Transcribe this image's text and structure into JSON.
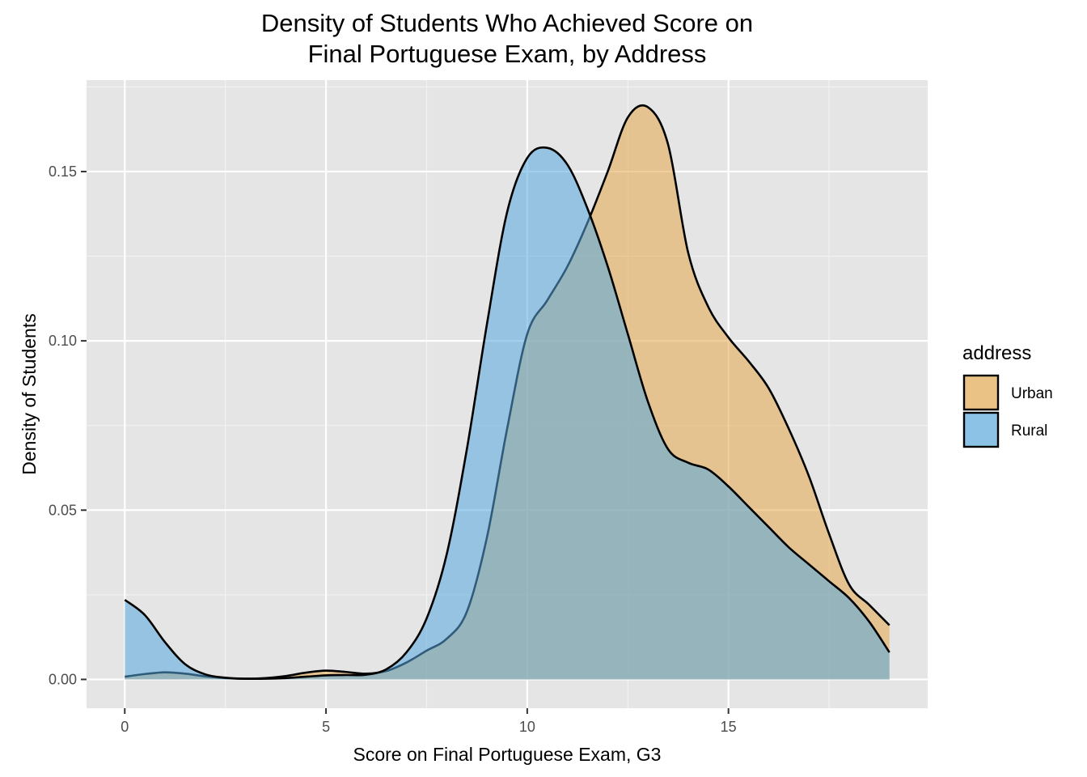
{
  "chart_data": {
    "type": "area",
    "title": [
      "Density of Students Who Achieved Score on",
      "Final Portuguese Exam, by Address"
    ],
    "xlabel": "Score on Final Portuguese Exam, G3",
    "ylabel": "Density of Students",
    "xlim": [
      -0.95,
      19.95
    ],
    "ylim": [
      -0.0085,
      0.177
    ],
    "x_ticks": [
      0,
      5,
      10,
      15
    ],
    "x_tick_labels": [
      "0",
      "5",
      "10",
      "15"
    ],
    "y_ticks": [
      0.0,
      0.05,
      0.1,
      0.15
    ],
    "y_tick_labels": [
      "0.00",
      "0.05",
      "0.10",
      "0.15"
    ],
    "grid": true,
    "panel_background": "#e5e5e5",
    "legend": {
      "title": "address",
      "position": "right"
    },
    "series": [
      {
        "name": "Urban",
        "color": "#e5a84b",
        "x": [
          0,
          0.5,
          1,
          1.5,
          2,
          2.5,
          3,
          3.5,
          4,
          4.5,
          5,
          5.5,
          6,
          6.5,
          7,
          7.5,
          8,
          8.5,
          9,
          9.5,
          10,
          10.5,
          11,
          11.5,
          12,
          12.5,
          13,
          13.5,
          14,
          14.5,
          15,
          15.5,
          16,
          16.5,
          17,
          17.5,
          18,
          18.5,
          19
        ],
        "values": [
          0.0008,
          0.0016,
          0.0021,
          0.0017,
          0.0009,
          0.0004,
          0.0002,
          0.0004,
          0.001,
          0.002,
          0.0026,
          0.0022,
          0.0017,
          0.0025,
          0.005,
          0.0085,
          0.012,
          0.02,
          0.042,
          0.074,
          0.102,
          0.112,
          0.122,
          0.135,
          0.15,
          0.166,
          0.169,
          0.158,
          0.126,
          0.11,
          0.101,
          0.094,
          0.086,
          0.074,
          0.06,
          0.043,
          0.028,
          0.022,
          0.016
        ]
      },
      {
        "name": "Rural",
        "color": "#56a8e0",
        "x": [
          0,
          0.5,
          1,
          1.5,
          2,
          2.5,
          3,
          3.5,
          4,
          4.5,
          5,
          5.5,
          6,
          6.5,
          7,
          7.5,
          8,
          8.5,
          9,
          9.5,
          10,
          10.5,
          11,
          11.5,
          12,
          12.5,
          13,
          13.5,
          14,
          14.5,
          15,
          15.5,
          16,
          16.5,
          17,
          17.5,
          18,
          18.5,
          19
        ],
        "values": [
          0.0235,
          0.019,
          0.011,
          0.0045,
          0.0015,
          0.0005,
          0.0002,
          0.0002,
          0.0004,
          0.0008,
          0.0012,
          0.0013,
          0.0014,
          0.003,
          0.008,
          0.018,
          0.037,
          0.068,
          0.105,
          0.138,
          0.154,
          0.157,
          0.152,
          0.139,
          0.122,
          0.102,
          0.082,
          0.068,
          0.064,
          0.062,
          0.057,
          0.051,
          0.045,
          0.039,
          0.034,
          0.029,
          0.024,
          0.017,
          0.008
        ]
      }
    ]
  }
}
